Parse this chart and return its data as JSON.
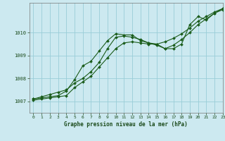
{
  "title": "Graphe pression niveau de la mer (hPa)",
  "background_color": "#cce9f0",
  "grid_color": "#99cdd8",
  "line_color": "#1a5c1a",
  "xlim": [
    -0.5,
    23
  ],
  "ylim": [
    1006.5,
    1011.3
  ],
  "yticks": [
    1007,
    1008,
    1009,
    1010
  ],
  "xticks": [
    0,
    1,
    2,
    3,
    4,
    5,
    6,
    7,
    8,
    9,
    10,
    11,
    12,
    13,
    14,
    15,
    16,
    17,
    18,
    19,
    20,
    21,
    22,
    23
  ],
  "series1": {
    "x": [
      0,
      1,
      2,
      3,
      4,
      5,
      6,
      7,
      8,
      9,
      10,
      11,
      12,
      13,
      14,
      15,
      16,
      17,
      18,
      19,
      20,
      21,
      22,
      23
    ],
    "y": [
      1007.1,
      1007.15,
      1007.2,
      1007.25,
      1007.45,
      1007.95,
      1008.55,
      1008.75,
      1009.2,
      1009.65,
      1009.95,
      1009.9,
      1009.9,
      1009.65,
      1009.55,
      1009.5,
      1009.3,
      1009.3,
      1009.5,
      1010.35,
      1010.7,
      1010.55,
      1010.85,
      1011.05
    ]
  },
  "series2": {
    "x": [
      0,
      1,
      2,
      3,
      4,
      5,
      6,
      7,
      8,
      9,
      10,
      11,
      12,
      13,
      14,
      15,
      16,
      17,
      18,
      19,
      20,
      21,
      22,
      23
    ],
    "y": [
      1007.05,
      1007.1,
      1007.15,
      1007.2,
      1007.25,
      1007.6,
      1007.85,
      1008.1,
      1008.5,
      1008.9,
      1009.3,
      1009.55,
      1009.6,
      1009.55,
      1009.5,
      1009.5,
      1009.6,
      1009.75,
      1009.95,
      1010.2,
      1010.5,
      1010.7,
      1010.9,
      1011.05
    ]
  },
  "series3": {
    "x": [
      0,
      1,
      2,
      3,
      4,
      5,
      6,
      7,
      8,
      9,
      10,
      11,
      12,
      13,
      14,
      15,
      16,
      17,
      18,
      19,
      20,
      21,
      22,
      23
    ],
    "y": [
      1007.1,
      1007.2,
      1007.3,
      1007.4,
      1007.5,
      1007.8,
      1008.0,
      1008.3,
      1008.7,
      1009.3,
      1009.8,
      1009.85,
      1009.8,
      1009.7,
      1009.55,
      1009.45,
      1009.3,
      1009.45,
      1009.7,
      1010.0,
      1010.35,
      1010.6,
      1010.85,
      1011.0
    ]
  },
  "markersize": 2.0,
  "linewidth": 0.8
}
